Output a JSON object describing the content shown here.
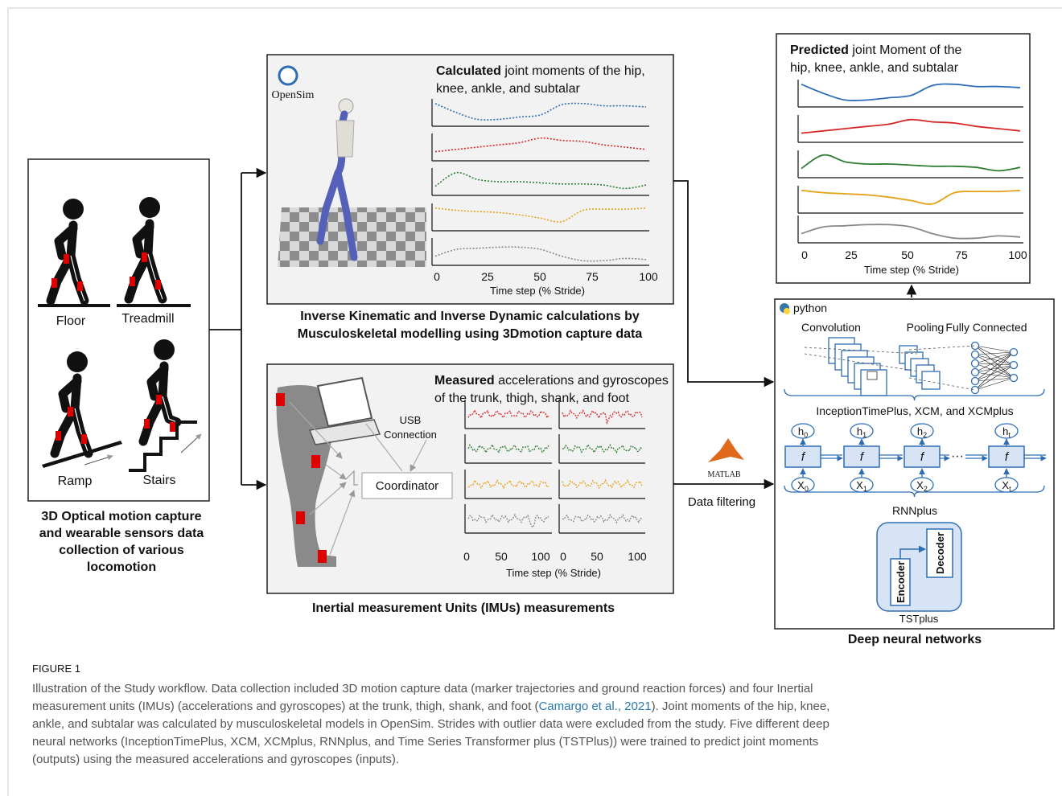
{
  "collection": {
    "labels": [
      "Floor",
      "Treadmill",
      "Ramp",
      "Stairs"
    ],
    "caption": [
      "3D Optical motion capture",
      "and wearable sensors data",
      "collection of various",
      "locomotion"
    ]
  },
  "opensim": {
    "logo": "OpenSim",
    "heading_bold": "Calculated",
    "heading": [
      " joint moments of the  hip,",
      "knee, ankle, and subtalar"
    ],
    "x_ticks": [
      "0",
      "25",
      "50",
      "75",
      "100"
    ],
    "x_label": "Time step (% Stride)",
    "caption": [
      "Inverse Kinematic and Inverse Dynamic calculations by",
      "Musculoskeletal modelling using 3Dmotion capture data"
    ]
  },
  "imu": {
    "heading_bold": "Measured",
    "heading": [
      " accelerations and gyroscopes",
      "of the trunk, thigh, shank, and  foot"
    ],
    "usb": [
      "USB",
      "Connection"
    ],
    "coordinator": "Coordinator",
    "x_ticks_left": [
      "0",
      "50",
      "100"
    ],
    "x_ticks_right": [
      "0",
      "50",
      "100"
    ],
    "x_label": "Time step (% Stride)",
    "caption": "Inertial measurement Units (IMUs) measurements"
  },
  "middle": {
    "matlab": "MATLAB",
    "filtering": "Data filtering"
  },
  "predicted": {
    "heading_bold": "Predicted",
    "heading": [
      " joint Moment of the",
      "hip, knee, ankle, and subtalar"
    ],
    "x_ticks": [
      "0",
      "25",
      "50",
      "75",
      "100"
    ],
    "x_label": "Time step (% Stride)"
  },
  "dnn": {
    "python": "python",
    "layers": [
      "Convolution",
      "Pooling",
      "Fully Connected"
    ],
    "cnn_label": "InceptionTimePlus, XCM, and XCMplus",
    "hidden": [
      {
        "base": "h",
        "sub": "0"
      },
      {
        "base": "h",
        "sub": "1"
      },
      {
        "base": "h",
        "sub": "2"
      },
      {
        "base": "h",
        "sub": "t"
      }
    ],
    "cell": "f",
    "inputs": [
      {
        "base": "X",
        "sub": "0"
      },
      {
        "base": "X",
        "sub": "1"
      },
      {
        "base": "X",
        "sub": "2"
      },
      {
        "base": "X",
        "sub": "t"
      }
    ],
    "ellipsis": "···",
    "rnn_label": "RNNplus",
    "encoder": "Encoder",
    "decoder": "Decoder",
    "tst_label": "TSTplus",
    "caption": "Deep neural networks"
  },
  "figure_caption": {
    "label": "FIGURE 1",
    "line1": "Illustration of the Study workflow. Data collection included 3D motion capture data (marker trajectories and ground reaction forces) and four Inertial",
    "line2_start": "measurement units (IMUs) (accelerations and gyroscopes) at the trunk, thigh, shank, and foot (",
    "citation": "Camargo et al., 2021",
    "line2_end": "). Joint moments of the hip, knee,",
    "line3": "ankle, and subtalar was calculated by musculoskeletal models in OpenSim. Strides with outlier data were excluded from the study. Five different deep",
    "line4": "neural networks (InceptionTimePlus, XCM, XCMplus, RNNplus, and Time Series Transformer plus (TSTPlus)) were trained to predict joint moments",
    "line5": "(outputs) using the measured accelerations and gyroscopes (inputs)."
  }
}
